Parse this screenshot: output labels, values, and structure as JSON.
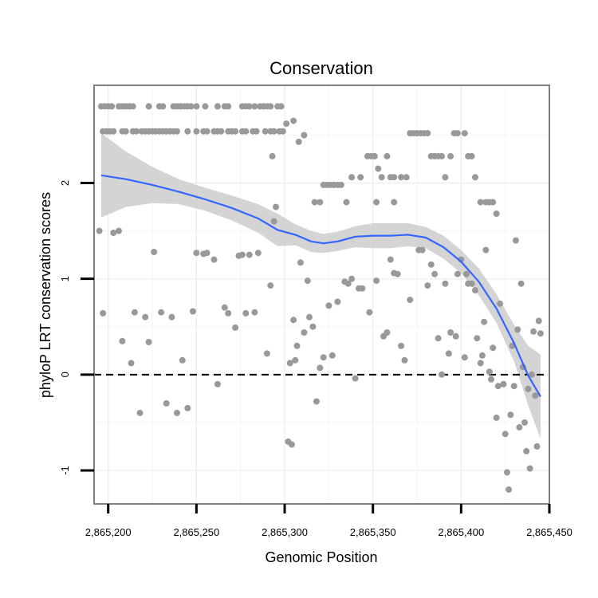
{
  "chart_data": {
    "type": "scatter",
    "title": "Conservation",
    "xlabel": "Genomic Position",
    "ylabel": "phyloP LRT conservation scores",
    "xlim": [
      2865192,
      2865450
    ],
    "ylim": [
      -1.35,
      3.02
    ],
    "grid": true,
    "x_ticks": [
      2865200,
      2865250,
      2865300,
      2865350,
      2865400,
      2865450
    ],
    "x_tick_labels": [
      "2,865,200",
      "2,865,250",
      "2,865,300",
      "2,865,350",
      "2,865,400",
      "2,865,450"
    ],
    "y_ticks": [
      -1,
      0,
      1,
      2
    ],
    "y_tick_labels": [
      "-1",
      "0",
      "1",
      "2"
    ],
    "reference_line": {
      "y": 0,
      "style": "dashed"
    },
    "point_color": "#999999",
    "smooth_color": "#3366ff",
    "band_color": "#cccccc",
    "points": [
      [
        2865196,
        2.8
      ],
      [
        2865198,
        2.8
      ],
      [
        2865200,
        2.8
      ],
      [
        2865202,
        2.8
      ],
      [
        2865206,
        2.8
      ],
      [
        2865208,
        2.8
      ],
      [
        2865210,
        2.8
      ],
      [
        2865212,
        2.8
      ],
      [
        2865214,
        2.8
      ],
      [
        2865223,
        2.8
      ],
      [
        2865229,
        2.8
      ],
      [
        2865231,
        2.8
      ],
      [
        2865237,
        2.8
      ],
      [
        2865239,
        2.8
      ],
      [
        2865241,
        2.8
      ],
      [
        2865243,
        2.8
      ],
      [
        2865245,
        2.8
      ],
      [
        2865247,
        2.8
      ],
      [
        2865250,
        2.8
      ],
      [
        2865255,
        2.8
      ],
      [
        2865262,
        2.8
      ],
      [
        2865266,
        2.8
      ],
      [
        2865268,
        2.8
      ],
      [
        2865276,
        2.8
      ],
      [
        2865278,
        2.8
      ],
      [
        2865280,
        2.8
      ],
      [
        2865283,
        2.8
      ],
      [
        2865286,
        2.8
      ],
      [
        2865288,
        2.8
      ],
      [
        2865290,
        2.8
      ],
      [
        2865292,
        2.8
      ],
      [
        2865296,
        2.8
      ],
      [
        2865298,
        2.8
      ],
      [
        2865197,
        2.54
      ],
      [
        2865199,
        2.54
      ],
      [
        2865201,
        2.54
      ],
      [
        2865203,
        2.54
      ],
      [
        2865208,
        2.54
      ],
      [
        2865210,
        2.54
      ],
      [
        2865214,
        2.54
      ],
      [
        2865216,
        2.54
      ],
      [
        2865219,
        2.54
      ],
      [
        2865221,
        2.54
      ],
      [
        2865223,
        2.54
      ],
      [
        2865225,
        2.54
      ],
      [
        2865227,
        2.54
      ],
      [
        2865229,
        2.54
      ],
      [
        2865231,
        2.54
      ],
      [
        2865233,
        2.54
      ],
      [
        2865235,
        2.54
      ],
      [
        2865237,
        2.54
      ],
      [
        2865239,
        2.54
      ],
      [
        2865245,
        2.54
      ],
      [
        2865250,
        2.54
      ],
      [
        2865254,
        2.54
      ],
      [
        2865256,
        2.54
      ],
      [
        2865260,
        2.54
      ],
      [
        2865262,
        2.54
      ],
      [
        2865264,
        2.54
      ],
      [
        2865268,
        2.54
      ],
      [
        2865270,
        2.54
      ],
      [
        2865272,
        2.54
      ],
      [
        2865276,
        2.54
      ],
      [
        2865278,
        2.54
      ],
      [
        2865282,
        2.54
      ],
      [
        2865284,
        2.54
      ],
      [
        2865289,
        2.54
      ],
      [
        2865292,
        2.54
      ],
      [
        2865294,
        2.54
      ],
      [
        2865297,
        2.54
      ],
      [
        2865299,
        2.54
      ],
      [
        2865301,
        2.62
      ],
      [
        2865305,
        2.65
      ],
      [
        2865308,
        2.43
      ],
      [
        2865311,
        2.5
      ],
      [
        2865293,
        2.28
      ],
      [
        2865317,
        1.8
      ],
      [
        2865320,
        1.8
      ],
      [
        2865322,
        1.98
      ],
      [
        2865324,
        1.98
      ],
      [
        2865326,
        1.98
      ],
      [
        2865328,
        1.98
      ],
      [
        2865330,
        1.98
      ],
      [
        2865332,
        1.98
      ],
      [
        2865335,
        1.8
      ],
      [
        2865338,
        2.06
      ],
      [
        2865343,
        2.06
      ],
      [
        2865347,
        2.28
      ],
      [
        2865349,
        2.28
      ],
      [
        2865351,
        2.28
      ],
      [
        2865353,
        2.15
      ],
      [
        2865355,
        2.06
      ],
      [
        2865358,
        2.28
      ],
      [
        2865360,
        2.06
      ],
      [
        2865362,
        2.06
      ],
      [
        2865366,
        2.06
      ],
      [
        2865369,
        2.06
      ],
      [
        2865371,
        2.52
      ],
      [
        2865373,
        2.52
      ],
      [
        2865375,
        2.52
      ],
      [
        2865377,
        2.52
      ],
      [
        2865379,
        2.52
      ],
      [
        2865381,
        2.52
      ],
      [
        2865383,
        2.28
      ],
      [
        2865385,
        2.28
      ],
      [
        2865387,
        2.28
      ],
      [
        2865389,
        2.28
      ],
      [
        2865391,
        2.06
      ],
      [
        2865394,
        2.28
      ],
      [
        2865396,
        2.52
      ],
      [
        2865398,
        2.52
      ],
      [
        2865402,
        2.52
      ],
      [
        2865404,
        2.28
      ],
      [
        2865406,
        2.28
      ],
      [
        2865408,
        2.06
      ],
      [
        2865411,
        1.8
      ],
      [
        2865414,
        1.8
      ],
      [
        2865416,
        1.8
      ],
      [
        2865418,
        1.8
      ],
      [
        2865420,
        1.68
      ],
      [
        2865352,
        1.8
      ],
      [
        2865362,
        1.8
      ],
      [
        2865195,
        1.5
      ],
      [
        2865197,
        0.64
      ],
      [
        2865203,
        1.48
      ],
      [
        2865206,
        1.5
      ],
      [
        2865208,
        0.35
      ],
      [
        2865213,
        0.12
      ],
      [
        2865215,
        0.65
      ],
      [
        2865218,
        -0.4
      ],
      [
        2865221,
        0.6
      ],
      [
        2865223,
        0.34
      ],
      [
        2865226,
        1.28
      ],
      [
        2865230,
        0.65
      ],
      [
        2865233,
        -0.3
      ],
      [
        2865236,
        0.6
      ],
      [
        2865239,
        -0.4
      ],
      [
        2865242,
        0.15
      ],
      [
        2865245,
        -0.35
      ],
      [
        2865248,
        0.66
      ],
      [
        2865250,
        1.27
      ],
      [
        2865254,
        1.26
      ],
      [
        2865256,
        1.27
      ],
      [
        2865260,
        1.2
      ],
      [
        2865262,
        -0.1
      ],
      [
        2865266,
        0.7
      ],
      [
        2865268,
        0.64
      ],
      [
        2865272,
        0.49
      ],
      [
        2865274,
        1.24
      ],
      [
        2865276,
        1.25
      ],
      [
        2865278,
        0.64
      ],
      [
        2865280,
        1.25
      ],
      [
        2865283,
        0.65
      ],
      [
        2865285,
        1.27
      ],
      [
        2865290,
        0.22
      ],
      [
        2865292,
        0.93
      ],
      [
        2865294,
        1.6
      ],
      [
        2865295,
        1.75
      ],
      [
        2865302,
        -0.7
      ],
      [
        2865304,
        -0.73
      ],
      [
        2865303,
        0.12
      ],
      [
        2865305,
        0.57
      ],
      [
        2865306,
        0.15
      ],
      [
        2865307,
        0.3
      ],
      [
        2865309,
        1.17
      ],
      [
        2865311,
        0.44
      ],
      [
        2865313,
        0.98
      ],
      [
        2865314,
        0.6
      ],
      [
        2865316,
        0.5
      ],
      [
        2865318,
        -0.28
      ],
      [
        2865320,
        0.07
      ],
      [
        2865322,
        0.18
      ],
      [
        2865325,
        0.72
      ],
      [
        2865327,
        0.2
      ],
      [
        2865330,
        0.76
      ],
      [
        2865334,
        0.97
      ],
      [
        2865336,
        0.95
      ],
      [
        2865338,
        1.0
      ],
      [
        2865340,
        -0.04
      ],
      [
        2865342,
        0.9
      ],
      [
        2865344,
        0.9
      ],
      [
        2865348,
        0.65
      ],
      [
        2865352,
        0.98
      ],
      [
        2865356,
        0.4
      ],
      [
        2865358,
        0.44
      ],
      [
        2865360,
        1.2
      ],
      [
        2865362,
        1.06
      ],
      [
        2865364,
        1.05
      ],
      [
        2865366,
        0.3
      ],
      [
        2865368,
        0.15
      ],
      [
        2865371,
        0.78
      ],
      [
        2865376,
        1.3
      ],
      [
        2865378,
        1.3
      ],
      [
        2865381,
        0.93
      ],
      [
        2865383,
        1.15
      ],
      [
        2865385,
        1.05
      ],
      [
        2865387,
        0.38
      ],
      [
        2865389,
        0.0
      ],
      [
        2865391,
        0.95
      ],
      [
        2865393,
        0.22
      ],
      [
        2865394,
        0.44
      ],
      [
        2865397,
        0.4
      ],
      [
        2865398,
        1.05
      ],
      [
        2865400,
        1.2
      ],
      [
        2865403,
        1.05
      ],
      [
        2865402,
        0.18
      ],
      [
        2865404,
        0.95
      ],
      [
        2865406,
        0.95
      ],
      [
        2865408,
        0.88
      ],
      [
        2865409,
        0.38
      ],
      [
        2865411,
        0.12
      ],
      [
        2865412,
        0.2
      ],
      [
        2865413,
        0.55
      ],
      [
        2865414,
        1.3
      ],
      [
        2865416,
        0.03
      ],
      [
        2865417,
        -0.05
      ],
      [
        2865418,
        0.28
      ],
      [
        2865420,
        -0.45
      ],
      [
        2865421,
        -0.12
      ],
      [
        2865422,
        0.74
      ],
      [
        2865424,
        -0.1
      ],
      [
        2865425,
        -0.62
      ],
      [
        2865426,
        -1.02
      ],
      [
        2865427,
        -1.2
      ],
      [
        2865428,
        -0.42
      ],
      [
        2865429,
        0.3
      ],
      [
        2865430,
        -0.12
      ],
      [
        2865431,
        1.4
      ],
      [
        2865432,
        0.47
      ],
      [
        2865433,
        -0.55
      ],
      [
        2865434,
        0.95
      ],
      [
        2865435,
        0.08
      ],
      [
        2865436,
        -0.5
      ],
      [
        2865437,
        -0.8
      ],
      [
        2865438,
        -0.15
      ],
      [
        2865439,
        -0.98
      ],
      [
        2865440,
        0.0
      ],
      [
        2865441,
        0.45
      ],
      [
        2865442,
        -0.22
      ],
      [
        2865443,
        -0.75
      ],
      [
        2865444,
        0.56
      ],
      [
        2865445,
        0.43
      ]
    ],
    "smooth_line": [
      [
        2865196,
        2.08
      ],
      [
        2865210,
        2.04
      ],
      [
        2865225,
        1.98
      ],
      [
        2865240,
        1.91
      ],
      [
        2865255,
        1.83
      ],
      [
        2865270,
        1.74
      ],
      [
        2865285,
        1.63
      ],
      [
        2865296,
        1.51
      ],
      [
        2865306,
        1.46
      ],
      [
        2865315,
        1.39
      ],
      [
        2865322,
        1.37
      ],
      [
        2865330,
        1.39
      ],
      [
        2865340,
        1.44
      ],
      [
        2865350,
        1.45
      ],
      [
        2865360,
        1.45
      ],
      [
        2865370,
        1.46
      ],
      [
        2865380,
        1.43
      ],
      [
        2865390,
        1.33
      ],
      [
        2865400,
        1.18
      ],
      [
        2865410,
        0.97
      ],
      [
        2865420,
        0.69
      ],
      [
        2865430,
        0.33
      ],
      [
        2865438,
        -0.01
      ],
      [
        2865445,
        -0.23
      ]
    ],
    "confidence_band_upper": [
      [
        2865196,
        2.52
      ],
      [
        2865210,
        2.33
      ],
      [
        2865225,
        2.17
      ],
      [
        2865240,
        2.04
      ],
      [
        2865255,
        1.95
      ],
      [
        2865270,
        1.87
      ],
      [
        2865285,
        1.78
      ],
      [
        2865296,
        1.68
      ],
      [
        2865306,
        1.57
      ],
      [
        2865315,
        1.5
      ],
      [
        2865322,
        1.47
      ],
      [
        2865330,
        1.49
      ],
      [
        2865340,
        1.55
      ],
      [
        2865350,
        1.58
      ],
      [
        2865360,
        1.58
      ],
      [
        2865370,
        1.58
      ],
      [
        2865380,
        1.54
      ],
      [
        2865390,
        1.45
      ],
      [
        2865400,
        1.3
      ],
      [
        2865410,
        1.11
      ],
      [
        2865420,
        0.84
      ],
      [
        2865430,
        0.52
      ],
      [
        2865438,
        0.3
      ],
      [
        2865445,
        0.21
      ]
    ],
    "confidence_band_lower": [
      [
        2865196,
        1.64
      ],
      [
        2865210,
        1.75
      ],
      [
        2865225,
        1.79
      ],
      [
        2865240,
        1.78
      ],
      [
        2865255,
        1.71
      ],
      [
        2865270,
        1.61
      ],
      [
        2865285,
        1.48
      ],
      [
        2865296,
        1.34
      ],
      [
        2865306,
        1.35
      ],
      [
        2865315,
        1.28
      ],
      [
        2865322,
        1.27
      ],
      [
        2865330,
        1.29
      ],
      [
        2865340,
        1.33
      ],
      [
        2865350,
        1.32
      ],
      [
        2865360,
        1.32
      ],
      [
        2865370,
        1.34
      ],
      [
        2865380,
        1.32
      ],
      [
        2865390,
        1.21
      ],
      [
        2865400,
        1.06
      ],
      [
        2865410,
        0.83
      ],
      [
        2865420,
        0.54
      ],
      [
        2865430,
        0.14
      ],
      [
        2865438,
        -0.32
      ],
      [
        2865445,
        -0.67
      ]
    ]
  }
}
